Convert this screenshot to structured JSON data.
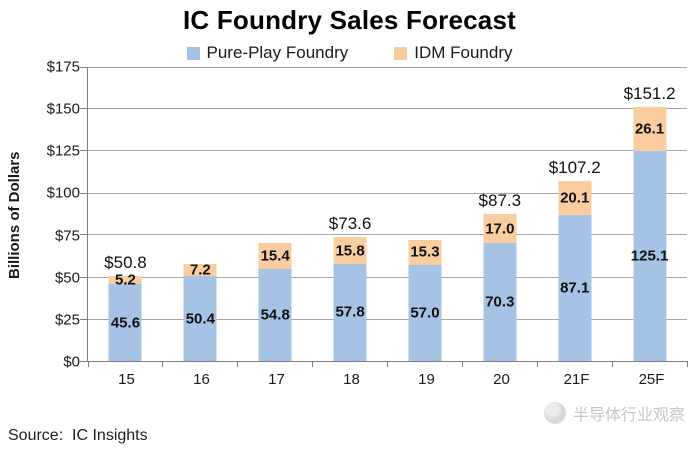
{
  "title": "IC Foundry Sales Forecast",
  "legend": [
    {
      "label": "Pure-Play Foundry",
      "color": "#A6C3E6"
    },
    {
      "label": "IDM Foundry",
      "color": "#F9CDA0"
    }
  ],
  "y_axis": {
    "title": "Billions of Dollars",
    "ticks": [
      "$175",
      "$150",
      "$125",
      "$100",
      "$75",
      "$50",
      "$25",
      "$0"
    ]
  },
  "source": "Source:  IC Insights",
  "watermark": "半导体行业观察",
  "colors": {
    "pure_play": "#A6C3E6",
    "idm": "#F9CDA0",
    "gridline": "#a6a6a6",
    "axis": "#7f7f7f"
  },
  "chart_data": {
    "type": "bar",
    "stacked": true,
    "title": "IC Foundry Sales Forecast",
    "ylabel": "Billions of Dollars",
    "ylim": [
      0,
      175
    ],
    "grid": true,
    "legend_position": "top",
    "categories": [
      "15",
      "16",
      "17",
      "18",
      "19",
      "20",
      "21F",
      "25F"
    ],
    "series": [
      {
        "name": "Pure-Play Foundry",
        "color": "#A6C3E6",
        "values": [
          45.6,
          50.4,
          54.8,
          57.8,
          57.0,
          70.3,
          87.1,
          125.1
        ],
        "labels": [
          "45.6",
          "50.4",
          "54.8",
          "57.8",
          "57.0",
          "70.3",
          "87.1",
          "125.1"
        ]
      },
      {
        "name": "IDM Foundry",
        "color": "#F9CDA0",
        "values": [
          5.2,
          7.2,
          15.4,
          15.8,
          15.3,
          17.0,
          20.1,
          26.1
        ],
        "labels": [
          "5.2",
          "7.2",
          "15.4",
          "15.8",
          "15.3",
          "17.0",
          "20.1",
          "26.1"
        ]
      }
    ],
    "totals": [
      50.8,
      57.6,
      70.2,
      73.6,
      72.3,
      87.3,
      107.2,
      151.2
    ],
    "total_labels": [
      "$50.8",
      "",
      "",
      "$73.6",
      "",
      "$87.3",
      "$107.2",
      "$151.2"
    ]
  }
}
